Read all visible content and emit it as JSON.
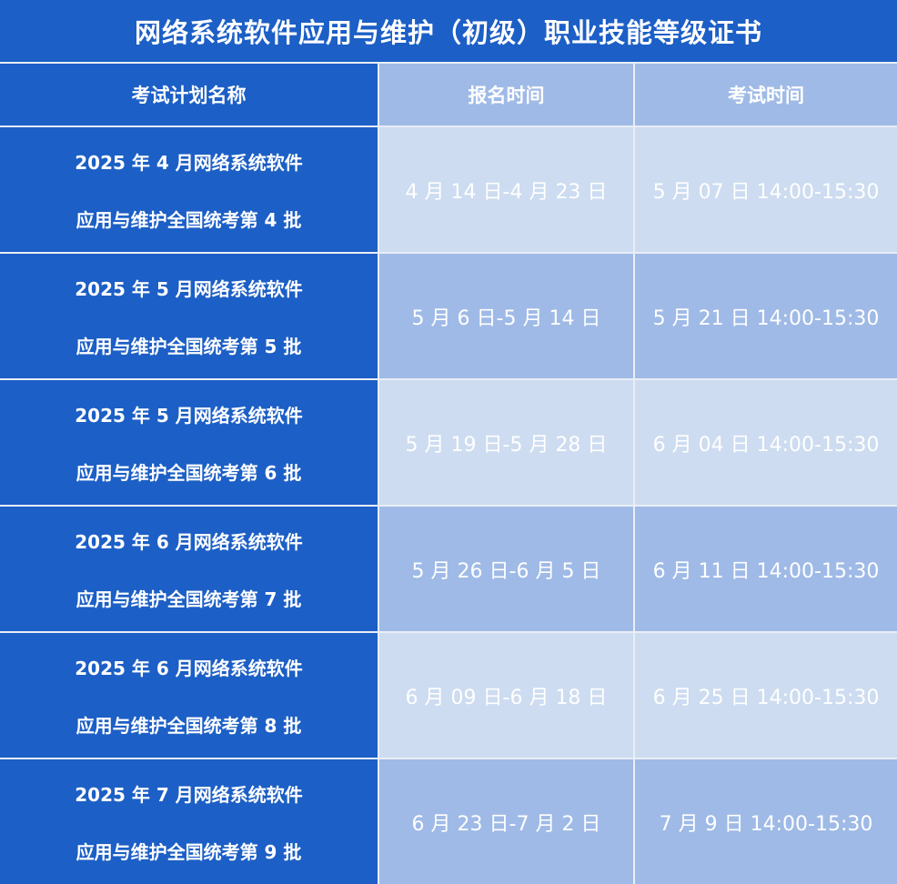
{
  "title": "网络系统软件应用与维护（初级）职业技能等级证书",
  "headers": [
    "考试计划名称",
    "报名时间",
    "考试时间"
  ],
  "rows": [
    {
      "name_line1": "2025 年 4 月网络系统软件",
      "name_line2": "应用与维护全国统考第 4 批",
      "registration": "4 月 14 日-4 月 23 日",
      "exam": "5 月 07 日  14:00-15:30"
    },
    {
      "name_line1": "2025 年 5 月网络系统软件",
      "name_line2": "应用与维护全国统考第 5 批",
      "registration": "5 月 6 日-5 月 14 日",
      "exam": "5 月 21 日  14:00-15:30"
    },
    {
      "name_line1": "2025 年 5 月网络系统软件",
      "name_line2": "应用与维护全国统考第 6 批",
      "registration": "5 月 19 日-5 月 28 日",
      "exam": "6 月 04 日  14:00-15:30"
    },
    {
      "name_line1": "2025 年 6 月网络系统软件",
      "name_line2": "应用与维护全国统考第 7 批",
      "registration": "5 月 26 日-6 月 5 日",
      "exam": "6 月 11 日  14:00-15:30"
    },
    {
      "name_line1": "2025 年 6 月网络系统软件",
      "name_line2": "应用与维护全国统考第 8 批",
      "registration": "6 月 09 日-6 月 18 日",
      "exam": "6 月 25 日  14:00-15:30"
    },
    {
      "name_line1": "2025 年 7 月网络系统软件",
      "name_line2": "应用与维护全国统考第 9 批",
      "registration": "6 月 23 日-7 月 2 日",
      "exam": "7 月 9 日  14:00-15:30"
    }
  ],
  "colors": {
    "dark": "#1c5fc6",
    "mid": "#9fbae6",
    "light": "#cddcf0"
  }
}
